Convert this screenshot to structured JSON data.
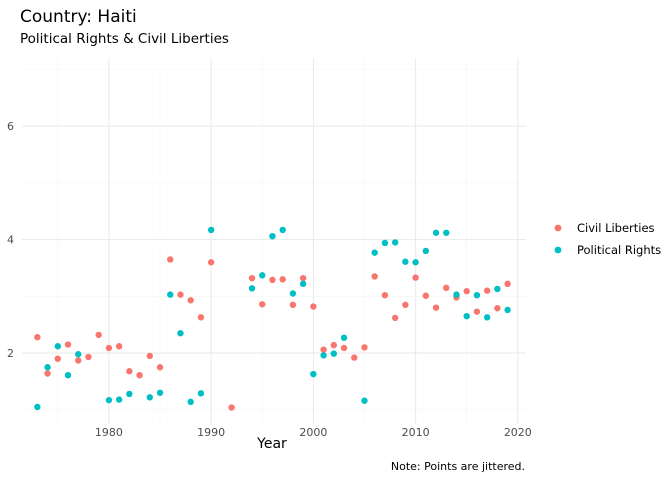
{
  "chart_data": {
    "type": "scatter",
    "title": "Country: Haiti",
    "subtitle": "Political Rights & Civil Liberties",
    "xlabel": "Year",
    "ylabel": "",
    "caption": "Note: Points are jittered.",
    "xlim": [
      1971.5,
      2020.8
    ],
    "ylim": [
      0.75,
      7.2
    ],
    "x_ticks": [
      1980,
      1990,
      2000,
      2010,
      2020
    ],
    "y_ticks": [
      2,
      4,
      6
    ],
    "grid": true,
    "legend_position": "right",
    "series": [
      {
        "name": "Civil Liberties",
        "color": "#F8766D",
        "points": [
          [
            1973,
            2.28
          ],
          [
            1974,
            1.64
          ],
          [
            1975,
            1.9
          ],
          [
            1976,
            2.15
          ],
          [
            1977,
            1.87
          ],
          [
            1978,
            1.93
          ],
          [
            1979,
            2.32
          ],
          [
            1980,
            2.09
          ],
          [
            1981,
            2.12
          ],
          [
            1982,
            1.68
          ],
          [
            1983,
            1.61
          ],
          [
            1984,
            1.95
          ],
          [
            1985,
            1.75
          ],
          [
            1986,
            3.65
          ],
          [
            1987,
            3.03
          ],
          [
            1988,
            2.93
          ],
          [
            1989,
            2.63
          ],
          [
            1990,
            3.6
          ],
          [
            1992,
            1.04
          ],
          [
            1994,
            3.32
          ],
          [
            1995,
            2.86
          ],
          [
            1996,
            3.29
          ],
          [
            1997,
            3.3
          ],
          [
            1998,
            2.85
          ],
          [
            1999,
            3.32
          ],
          [
            2000,
            2.82
          ],
          [
            2001,
            2.06
          ],
          [
            2002,
            2.14
          ],
          [
            2003,
            2.09
          ],
          [
            2004,
            1.92
          ],
          [
            2005,
            2.1
          ],
          [
            2006,
            3.35
          ],
          [
            2007,
            3.02
          ],
          [
            2008,
            2.62
          ],
          [
            2009,
            2.85
          ],
          [
            2010,
            3.33
          ],
          [
            2011,
            3.01
          ],
          [
            2012,
            2.8
          ],
          [
            2013,
            3.15
          ],
          [
            2014,
            2.98
          ],
          [
            2015,
            3.09
          ],
          [
            2016,
            2.73
          ],
          [
            2017,
            3.1
          ],
          [
            2018,
            2.79
          ],
          [
            2019,
            3.22
          ]
        ]
      },
      {
        "name": "Political Rights",
        "color": "#00BFC4",
        "points": [
          [
            1973,
            1.05
          ],
          [
            1974,
            1.75
          ],
          [
            1975,
            2.12
          ],
          [
            1976,
            1.61
          ],
          [
            1977,
            1.98
          ],
          [
            1980,
            1.17
          ],
          [
            1981,
            1.18
          ],
          [
            1982,
            1.28
          ],
          [
            1984,
            1.22
          ],
          [
            1985,
            1.3
          ],
          [
            1986,
            3.03
          ],
          [
            1987,
            2.35
          ],
          [
            1988,
            1.14
          ],
          [
            1989,
            1.29
          ],
          [
            1990,
            4.17
          ],
          [
            1994,
            3.14
          ],
          [
            1995,
            3.37
          ],
          [
            1996,
            4.06
          ],
          [
            1997,
            4.17
          ],
          [
            1998,
            3.05
          ],
          [
            1999,
            3.22
          ],
          [
            2000,
            1.63
          ],
          [
            2001,
            1.96
          ],
          [
            2002,
            1.99
          ],
          [
            2003,
            2.27
          ],
          [
            2005,
            1.16
          ],
          [
            2006,
            3.77
          ],
          [
            2007,
            3.94
          ],
          [
            2008,
            3.95
          ],
          [
            2009,
            3.61
          ],
          [
            2010,
            3.6
          ],
          [
            2011,
            3.8
          ],
          [
            2012,
            4.12
          ],
          [
            2013,
            4.12
          ],
          [
            2014,
            3.03
          ],
          [
            2015,
            2.65
          ],
          [
            2016,
            3.02
          ],
          [
            2017,
            2.63
          ],
          [
            2018,
            3.13
          ],
          [
            2019,
            2.76
          ]
        ]
      }
    ]
  }
}
